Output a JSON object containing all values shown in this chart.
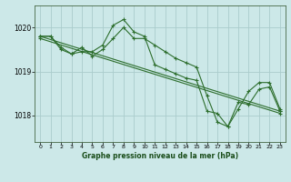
{
  "title": "Graphe pression niveau de la mer (hPa)",
  "background_color": "#cce8e8",
  "grid_color": "#aacccc",
  "line_color": "#2d6e2d",
  "xlim": [
    -0.5,
    23.5
  ],
  "ylim": [
    1017.4,
    1020.5
  ],
  "yticks": [
    1018,
    1019,
    1020
  ],
  "xticks": [
    0,
    1,
    2,
    3,
    4,
    5,
    6,
    7,
    8,
    9,
    10,
    11,
    12,
    13,
    14,
    15,
    16,
    17,
    18,
    19,
    20,
    21,
    22,
    23
  ],
  "series1_x": [
    0,
    1,
    2,
    3,
    4,
    5,
    6,
    7,
    8,
    9,
    10,
    11,
    12,
    13,
    14,
    15,
    16,
    17,
    18,
    19,
    20,
    21,
    22,
    23
  ],
  "series1_y": [
    1019.8,
    1019.8,
    1019.5,
    1019.4,
    1019.45,
    1019.45,
    1019.6,
    1020.05,
    1020.18,
    1019.9,
    1019.8,
    1019.15,
    1019.05,
    1018.95,
    1018.85,
    1018.8,
    1018.1,
    1018.05,
    1017.75,
    1018.3,
    1018.25,
    1018.6,
    1018.65,
    1018.1
  ],
  "series2_x": [
    0,
    1,
    2,
    3,
    4,
    5,
    6,
    7,
    8,
    9,
    10,
    11,
    12,
    13,
    14,
    15,
    16,
    17,
    18,
    19,
    20,
    21,
    22,
    23
  ],
  "series2_y": [
    1019.8,
    1019.8,
    1019.55,
    1019.4,
    1019.55,
    1019.35,
    1019.5,
    1019.75,
    1020.0,
    1019.75,
    1019.75,
    1019.6,
    1019.45,
    1019.3,
    1019.2,
    1019.1,
    1018.45,
    1017.85,
    1017.75,
    1018.15,
    1018.55,
    1018.75,
    1018.75,
    1018.15
  ],
  "series3_x": [
    0,
    23
  ],
  "series3_y": [
    1019.8,
    1018.1
  ],
  "series4_x": [
    0,
    23
  ],
  "series4_y": [
    1019.75,
    1018.05
  ]
}
